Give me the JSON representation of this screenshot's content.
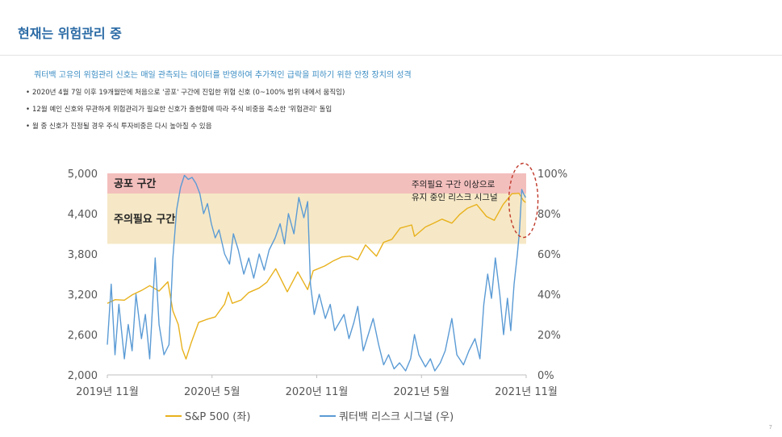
{
  "header": {
    "title": "현재는 위험관리 중",
    "subtitle": "쿼터백 고유의 위험관리 신호는 매일 관측되는 데이터를 반영하여 추가적인 급락을 피하기 위한 안정 장치의 성격",
    "bullets": [
      "2020년 4월 7일 이후 19개월만에 처음으로 '공포' 구간에 진입한 위험 신호 (0~100% 범위 내에서 움직임)",
      "12월 예인 신호와 무관하게 위험관리가 필요한 신호가 출현함에 따라 주식 비중을 축소한 '위험관리' 돌입",
      "월 중 신호가 진정될 경우 주식 투자비중은 다시 높아질 수 있음"
    ]
  },
  "page_number": "7",
  "chart_data": {
    "type": "line",
    "x_ticks": [
      "2019년 11월",
      "2020년 5월",
      "2020년 11월",
      "2021년 5월",
      "2021년 11월"
    ],
    "x_range": [
      "2019-11-01",
      "2021-12-01"
    ],
    "y_left": {
      "ticks": [
        "2,000",
        "2,600",
        "3,200",
        "3,800",
        "4,400",
        "5,000"
      ],
      "lim": [
        2000,
        5000
      ]
    },
    "y_right": {
      "ticks": [
        "0%",
        "20%",
        "40%",
        "60%",
        "80%",
        "100%"
      ],
      "lim": [
        0,
        100
      ]
    },
    "bands": [
      {
        "label": "공포 구간",
        "from": 90,
        "to": 100,
        "axis": "right",
        "color": "#f3bfbd"
      },
      {
        "label": "주의필요 구간",
        "from": 65,
        "to": 90,
        "axis": "right",
        "color": "#f6e8c6"
      }
    ],
    "annotation": {
      "lines": [
        "주의필요 구간 이상으로",
        "유지 중인 리스크 시그널"
      ],
      "target": [
        "2021-11-26",
        85
      ]
    },
    "series": [
      {
        "name": "S&P 500 (좌)",
        "axis": "left",
        "color": "#e8b11c",
        "points": [
          [
            "2019-11-01",
            3066
          ],
          [
            "2019-11-15",
            3120
          ],
          [
            "2019-12-02",
            3113
          ],
          [
            "2019-12-16",
            3191
          ],
          [
            "2020-01-02",
            3257
          ],
          [
            "2020-01-17",
            3329
          ],
          [
            "2020-02-03",
            3248
          ],
          [
            "2020-02-19",
            3386
          ],
          [
            "2020-02-28",
            2954
          ],
          [
            "2020-03-09",
            2746
          ],
          [
            "2020-03-16",
            2386
          ],
          [
            "2020-03-23",
            2237
          ],
          [
            "2020-04-01",
            2470
          ],
          [
            "2020-04-15",
            2783
          ],
          [
            "2020-05-01",
            2830
          ],
          [
            "2020-05-15",
            2863
          ],
          [
            "2020-06-01",
            3055
          ],
          [
            "2020-06-08",
            3232
          ],
          [
            "2020-06-15",
            3066
          ],
          [
            "2020-07-01",
            3115
          ],
          [
            "2020-07-15",
            3226
          ],
          [
            "2020-08-03",
            3294
          ],
          [
            "2020-08-17",
            3381
          ],
          [
            "2020-09-02",
            3580
          ],
          [
            "2020-09-23",
            3237
          ],
          [
            "2020-10-12",
            3534
          ],
          [
            "2020-10-30",
            3270
          ],
          [
            "2020-11-09",
            3550
          ],
          [
            "2020-11-30",
            3621
          ],
          [
            "2020-12-15",
            3694
          ],
          [
            "2020-12-31",
            3756
          ],
          [
            "2021-01-15",
            3768
          ],
          [
            "2021-01-29",
            3714
          ],
          [
            "2021-02-12",
            3934
          ],
          [
            "2021-03-04",
            3768
          ],
          [
            "2021-03-17",
            3974
          ],
          [
            "2021-04-01",
            4019
          ],
          [
            "2021-04-16",
            4185
          ],
          [
            "2021-05-07",
            4232
          ],
          [
            "2021-05-12",
            4063
          ],
          [
            "2021-06-01",
            4202
          ],
          [
            "2021-06-15",
            4255
          ],
          [
            "2021-07-01",
            4319
          ],
          [
            "2021-07-19",
            4258
          ],
          [
            "2021-08-02",
            4387
          ],
          [
            "2021-08-16",
            4479
          ],
          [
            "2021-09-02",
            4537
          ],
          [
            "2021-09-20",
            4358
          ],
          [
            "2021-10-04",
            4300
          ],
          [
            "2021-10-20",
            4536
          ],
          [
            "2021-11-05",
            4697
          ],
          [
            "2021-11-18",
            4704
          ],
          [
            "2021-11-26",
            4595
          ],
          [
            "2021-11-30",
            4567
          ]
        ]
      },
      {
        "name": "쿼터백 리스크 시그널 (우)",
        "axis": "right",
        "color": "#5b9bd5",
        "points": [
          [
            "2019-11-01",
            15
          ],
          [
            "2019-11-08",
            45
          ],
          [
            "2019-11-15",
            10
          ],
          [
            "2019-11-22",
            35
          ],
          [
            "2019-12-02",
            8
          ],
          [
            "2019-12-09",
            25
          ],
          [
            "2019-12-16",
            12
          ],
          [
            "2019-12-23",
            40
          ],
          [
            "2020-01-02",
            18
          ],
          [
            "2020-01-09",
            30
          ],
          [
            "2020-01-17",
            8
          ],
          [
            "2020-01-27",
            58
          ],
          [
            "2020-02-03",
            25
          ],
          [
            "2020-02-12",
            10
          ],
          [
            "2020-02-21",
            15
          ],
          [
            "2020-02-28",
            58
          ],
          [
            "2020-03-06",
            82
          ],
          [
            "2020-03-13",
            93
          ],
          [
            "2020-03-20",
            99
          ],
          [
            "2020-03-27",
            97
          ],
          [
            "2020-04-03",
            98
          ],
          [
            "2020-04-10",
            95
          ],
          [
            "2020-04-17",
            90
          ],
          [
            "2020-04-24",
            80
          ],
          [
            "2020-05-01",
            85
          ],
          [
            "2020-05-08",
            75
          ],
          [
            "2020-05-15",
            68
          ],
          [
            "2020-05-22",
            72
          ],
          [
            "2020-06-01",
            60
          ],
          [
            "2020-06-10",
            55
          ],
          [
            "2020-06-17",
            70
          ],
          [
            "2020-06-26",
            62
          ],
          [
            "2020-07-06",
            50
          ],
          [
            "2020-07-15",
            58
          ],
          [
            "2020-07-24",
            48
          ],
          [
            "2020-08-03",
            60
          ],
          [
            "2020-08-12",
            52
          ],
          [
            "2020-08-21",
            62
          ],
          [
            "2020-09-01",
            68
          ],
          [
            "2020-09-10",
            75
          ],
          [
            "2020-09-18",
            65
          ],
          [
            "2020-09-25",
            80
          ],
          [
            "2020-10-05",
            70
          ],
          [
            "2020-10-14",
            88
          ],
          [
            "2020-10-23",
            78
          ],
          [
            "2020-10-30",
            86
          ],
          [
            "2020-11-04",
            45
          ],
          [
            "2020-11-11",
            30
          ],
          [
            "2020-11-20",
            40
          ],
          [
            "2020-12-01",
            28
          ],
          [
            "2020-12-10",
            35
          ],
          [
            "2020-12-18",
            22
          ],
          [
            "2021-01-04",
            30
          ],
          [
            "2021-01-13",
            18
          ],
          [
            "2021-01-22",
            26
          ],
          [
            "2021-01-29",
            34
          ],
          [
            "2021-02-08",
            12
          ],
          [
            "2021-02-17",
            20
          ],
          [
            "2021-02-26",
            28
          ],
          [
            "2021-03-08",
            15
          ],
          [
            "2021-03-17",
            5
          ],
          [
            "2021-03-26",
            10
          ],
          [
            "2021-04-05",
            3
          ],
          [
            "2021-04-15",
            6
          ],
          [
            "2021-04-26",
            2
          ],
          [
            "2021-05-05",
            8
          ],
          [
            "2021-05-12",
            20
          ],
          [
            "2021-05-20",
            10
          ],
          [
            "2021-06-01",
            4
          ],
          [
            "2021-06-10",
            8
          ],
          [
            "2021-06-18",
            2
          ],
          [
            "2021-06-28",
            6
          ],
          [
            "2021-07-07",
            12
          ],
          [
            "2021-07-19",
            28
          ],
          [
            "2021-07-28",
            10
          ],
          [
            "2021-08-09",
            5
          ],
          [
            "2021-08-19",
            12
          ],
          [
            "2021-08-30",
            18
          ],
          [
            "2021-09-08",
            8
          ],
          [
            "2021-09-15",
            35
          ],
          [
            "2021-09-22",
            50
          ],
          [
            "2021-09-29",
            38
          ],
          [
            "2021-10-06",
            58
          ],
          [
            "2021-10-14",
            40
          ],
          [
            "2021-10-21",
            20
          ],
          [
            "2021-10-28",
            38
          ],
          [
            "2021-11-03",
            22
          ],
          [
            "2021-11-09",
            45
          ],
          [
            "2021-11-15",
            60
          ],
          [
            "2021-11-19",
            72
          ],
          [
            "2021-11-23",
            92
          ],
          [
            "2021-11-26",
            90
          ],
          [
            "2021-11-30",
            88
          ]
        ]
      }
    ]
  }
}
